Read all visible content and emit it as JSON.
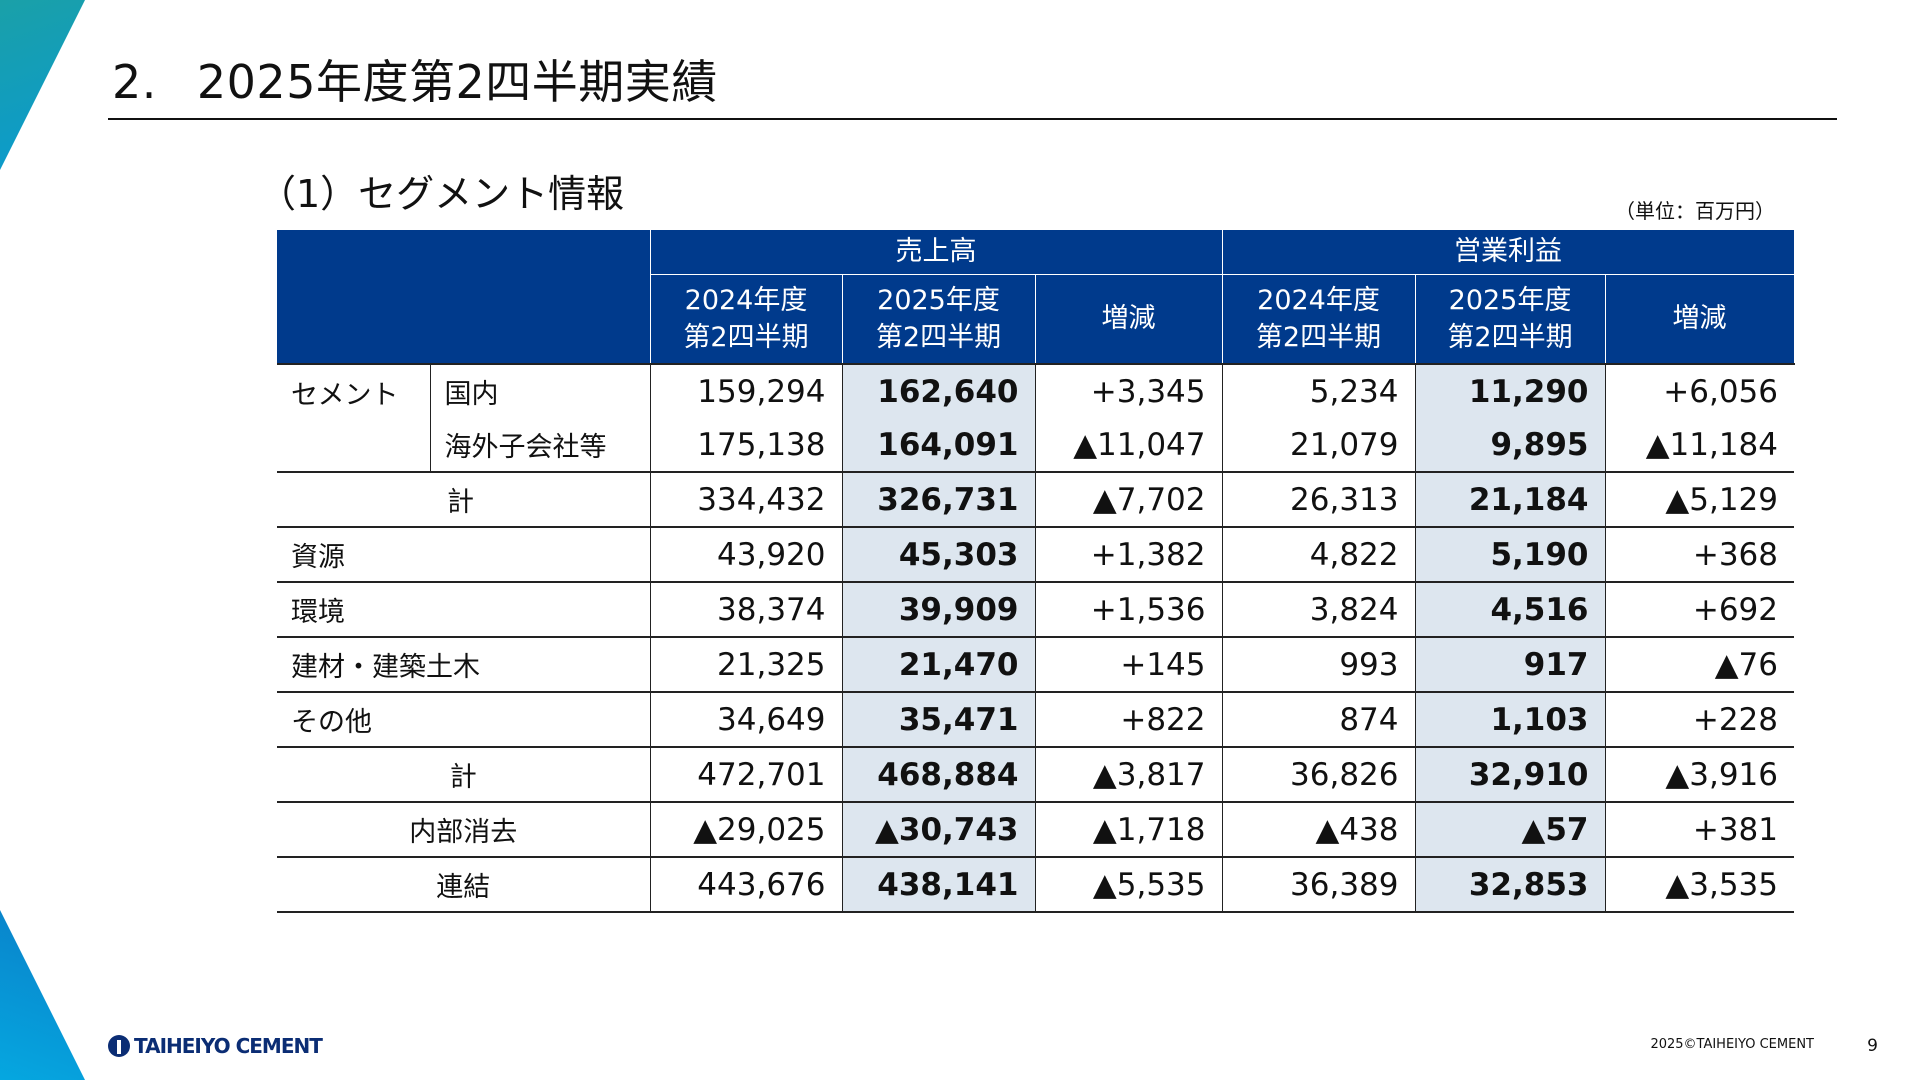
{
  "slide": {
    "title_number": "2.",
    "title": "2025年度第2四半期実績",
    "subtitle": "（1）セグメント情報",
    "unit": "（単位：百万円）",
    "copyright": "2025©TAIHEIYO CEMENT",
    "page_number": "9",
    "logo_text": "TAIHEIYO CEMENT"
  },
  "colors": {
    "header_bg": "#003a8c",
    "highlight_col": "#dde6ef",
    "accent": "#0a9ad0"
  },
  "table": {
    "groups": [
      "売上高",
      "営業利益"
    ],
    "subheaders": [
      {
        "line1": "2024年度",
        "line2": "第2四半期"
      },
      {
        "line1": "2025年度",
        "line2": "第2四半期"
      },
      {
        "line1": "増減",
        "line2": ""
      },
      {
        "line1": "2024年度",
        "line2": "第2四半期"
      },
      {
        "line1": "2025年度",
        "line2": "第2四半期"
      },
      {
        "line1": "増減",
        "line2": ""
      }
    ],
    "cement_label": "セメント",
    "rows": [
      {
        "label": "国内",
        "values": [
          "159,294",
          "162,640",
          "+3,345",
          "5,234",
          "11,290",
          "+6,056"
        ]
      },
      {
        "label": "海外子会社等",
        "values": [
          "175,138",
          "164,091",
          "▲11,047",
          "21,079",
          "9,895",
          "▲11,184"
        ]
      },
      {
        "label": "計",
        "values": [
          "334,432",
          "326,731",
          "▲7,702",
          "26,313",
          "21,184",
          "▲5,129"
        ]
      },
      {
        "label": "資源",
        "values": [
          "43,920",
          "45,303",
          "+1,382",
          "4,822",
          "5,190",
          "+368"
        ]
      },
      {
        "label": "環境",
        "values": [
          "38,374",
          "39,909",
          "+1,536",
          "3,824",
          "4,516",
          "+692"
        ]
      },
      {
        "label": "建材・建築土木",
        "values": [
          "21,325",
          "21,470",
          "+145",
          "993",
          "917",
          "▲76"
        ]
      },
      {
        "label": "その他",
        "values": [
          "34,649",
          "35,471",
          "+822",
          "874",
          "1,103",
          "+228"
        ]
      },
      {
        "label": "計",
        "values": [
          "472,701",
          "468,884",
          "▲3,817",
          "36,826",
          "32,910",
          "▲3,916"
        ]
      },
      {
        "label": "内部消去",
        "values": [
          "▲29,025",
          "▲30,743",
          "▲1,718",
          "▲438",
          "▲57",
          "+381"
        ]
      },
      {
        "label": "連結",
        "values": [
          "443,676",
          "438,141",
          "▲5,535",
          "36,389",
          "32,853",
          "▲3,535"
        ]
      }
    ]
  }
}
